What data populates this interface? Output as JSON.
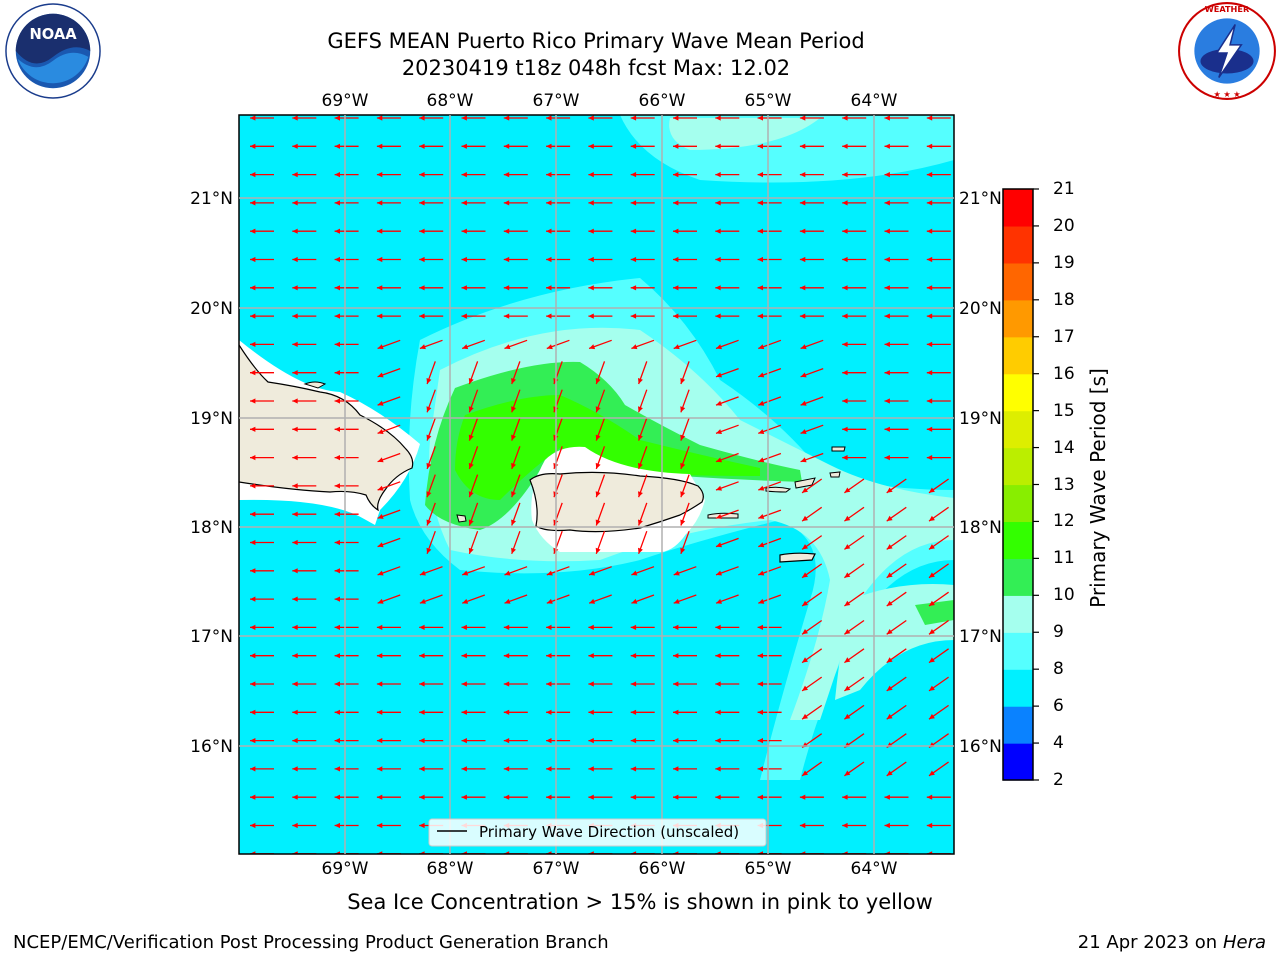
{
  "title_line1": "GEFS MEAN Puerto Rico Primary Wave Mean Period",
  "title_line2": "20230419 t18z 048h fcst   Max: 12.02",
  "logos": {
    "left": "NOAA",
    "right": "NATIONAL WEATHER SERVICE"
  },
  "map": {
    "lon_labels": [
      "69°W",
      "68°W",
      "67°W",
      "66°W",
      "65°W",
      "64°W"
    ],
    "lat_labels": [
      "21°N",
      "20°N",
      "19°N",
      "18°N",
      "17°N",
      "16°N"
    ],
    "legend_label": "Primary Wave Direction (unscaled)",
    "colors": {
      "ocean_base": "#00f0ff",
      "land": "#efebdc",
      "arrows": "#ff0000"
    }
  },
  "colorbar": {
    "label": "Primary Wave Period [s]",
    "ticks": [
      "2",
      "4",
      "6",
      "8",
      "9",
      "10",
      "11",
      "12",
      "13",
      "14",
      "15",
      "16",
      "17",
      "18",
      "19",
      "20",
      "21"
    ],
    "colors": [
      "#0000ff",
      "#0a82ff",
      "#00f0ff",
      "#55ffff",
      "#a5ffee",
      "#33ee55",
      "#33ff00",
      "#88ee00",
      "#bbee00",
      "#ddee00",
      "#ffff00",
      "#ffcc00",
      "#ff9900",
      "#ff6600",
      "#ff3300",
      "#ff0000"
    ]
  },
  "subtitle": "Sea Ice Concentration > 15% is shown in pink to yellow",
  "footer_left": "NCEP/EMC/Verification Post Processing Product Generation Branch",
  "footer_right_prefix": "21 Apr 2023 on ",
  "footer_right_host": "Hera"
}
